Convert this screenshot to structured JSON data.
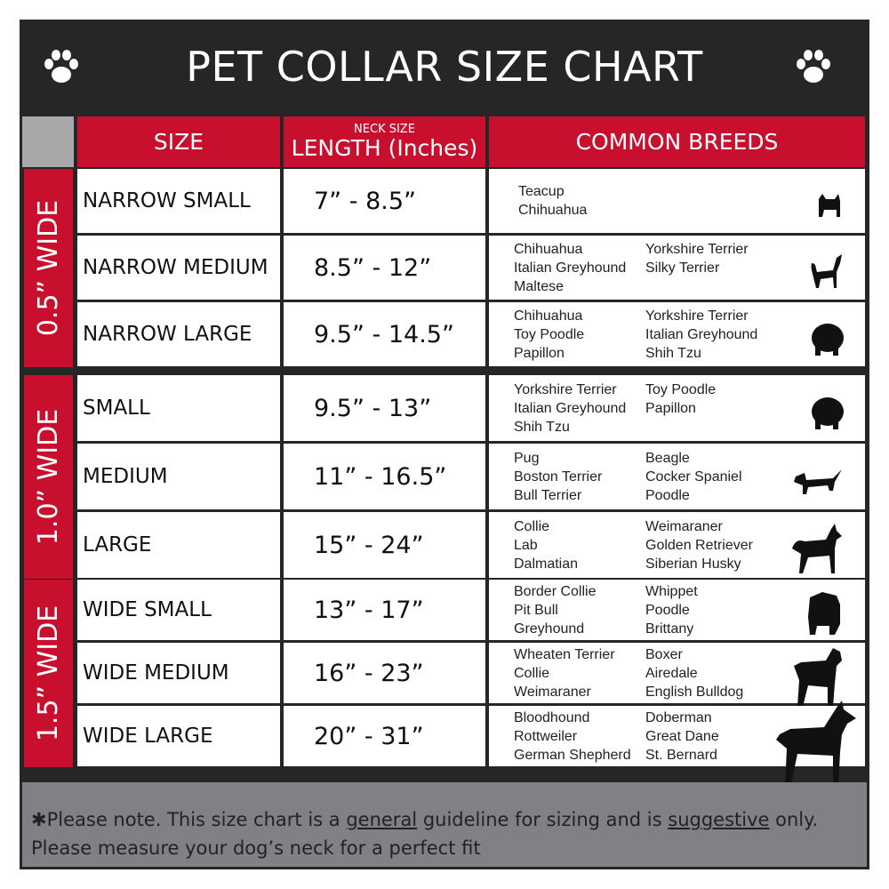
{
  "title": "PET COLLAR SIZE CHART",
  "icons": {
    "left": "paw-print-icon",
    "right": "paw-print-icon"
  },
  "colors": {
    "accent": "#c8102e",
    "frame": "#262626",
    "footer": "#808184"
  },
  "headers": {
    "size": "SIZE",
    "length_small": "NECK SIZE",
    "length": "LENGTH (Inches)",
    "breeds": "COMMON BREEDS"
  },
  "groups": [
    {
      "label": "0.5” WIDE",
      "rows": [
        {
          "size": "NARROW SMALL",
          "length": "7” - 8.5”",
          "col1": [
            "Teacup",
            "Chihuahua"
          ],
          "col2": [],
          "dog": "yorkie"
        },
        {
          "size": "NARROW MEDIUM",
          "length": "8.5” - 12”",
          "col1": [
            "Chihuahua",
            "Italian Greyhound",
            "Maltese"
          ],
          "col2": [
            "Yorkshire Terrier",
            "Silky Terrier"
          ],
          "dog": "chihuahua"
        },
        {
          "size": "NARROW LARGE",
          "length": "9.5” - 14.5”",
          "col1": [
            "Chihuahua",
            "Toy Poodle",
            "Papillon"
          ],
          "col2": [
            "Yorkshire Terrier",
            "Italian Greyhound",
            "Shih Tzu"
          ],
          "dog": "pomeranian"
        }
      ]
    },
    {
      "label": "1.0” WIDE",
      "rows": [
        {
          "size": "SMALL",
          "length": "9.5” - 13”",
          "col1": [
            "Yorkshire Terrier",
            "Italian Greyhound",
            "Shih Tzu"
          ],
          "col2": [
            "Toy Poodle",
            "Papillon"
          ],
          "dog": "pomeranian"
        },
        {
          "size": "MEDIUM",
          "length": "11” - 16.5”",
          "col1": [
            "Pug",
            "Boston Terrier",
            "Bull Terrier"
          ],
          "col2": [
            "Beagle",
            "Cocker Spaniel",
            "Poodle"
          ],
          "dog": "dachshund"
        },
        {
          "size": "LARGE",
          "length": "15” - 24”",
          "col1": [
            "Collie",
            "Lab",
            "Dalmatian"
          ],
          "col2": [
            "Weimaraner",
            "Golden Retriever",
            "Siberian Husky"
          ],
          "dog": "shepherd"
        }
      ]
    },
    {
      "label": "1.5” WIDE",
      "rows": [
        {
          "size": "WIDE SMALL",
          "length": "13” - 17”",
          "col1": [
            "Border Collie",
            "Pit Bull",
            "Greyhound"
          ],
          "col2": [
            "Whippet",
            "Poodle",
            "Brittany"
          ],
          "dog": "bulldog"
        },
        {
          "size": "WIDE MEDIUM",
          "length": "16” - 23”",
          "col1": [
            "Wheaten Terrier",
            "Collie",
            "Weimaraner"
          ],
          "col2": [
            "Boxer",
            "Airedale",
            "English Bulldog"
          ],
          "dog": "pitbull"
        },
        {
          "size": "WIDE LARGE",
          "length": "20” - 31”",
          "col1": [
            "Bloodhound",
            "Rottweiler",
            "German Shepherd"
          ],
          "col2": [
            "Doberman",
            "Great Dane",
            "St. Bernard"
          ],
          "dog": "doberman"
        }
      ]
    }
  ],
  "footer": {
    "pre": "✱Please note. This size chart is a ",
    "u1": "general",
    "mid": " guideline for sizing and is ",
    "u2": "suggestive",
    "post": " only.",
    "line2": "Please measure your dog’s neck for a perfect fit"
  }
}
